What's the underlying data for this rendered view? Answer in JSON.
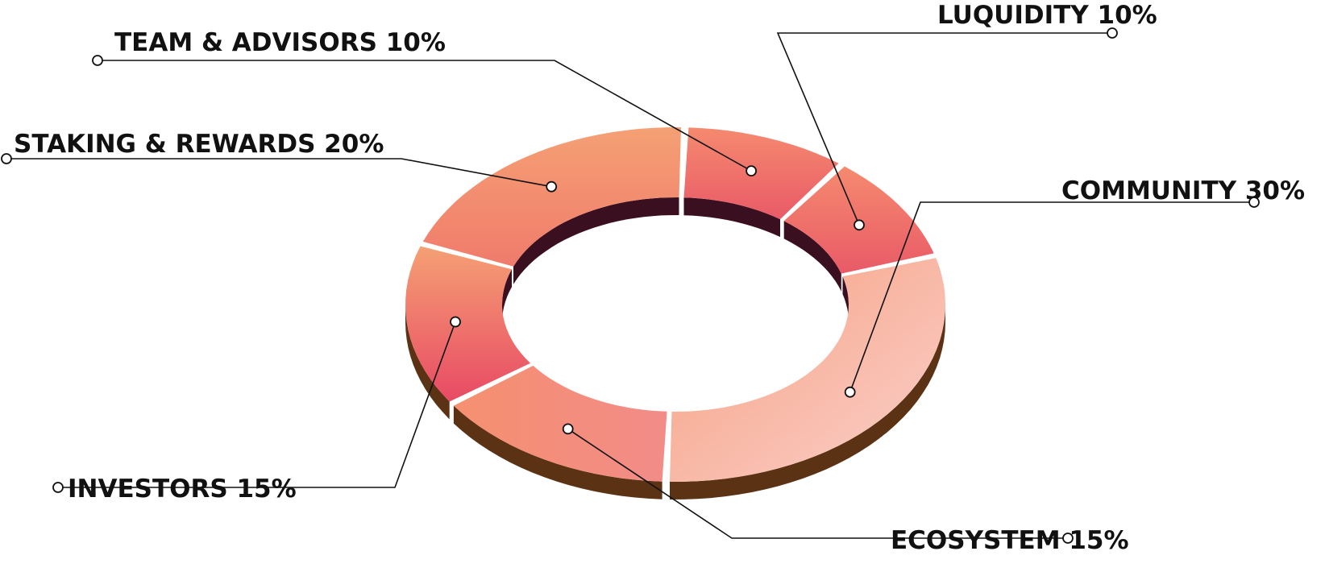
{
  "chart_data": {
    "type": "pie",
    "variant": "3d-donut",
    "title": "",
    "slices": [
      {
        "label": "LUQUIDITY 10%",
        "name": "LUQUIDITY",
        "value": 10
      },
      {
        "label": "COMMUNITY 30%",
        "name": "COMMUNITY",
        "value": 30
      },
      {
        "label": "ECOSYSTEM 15%",
        "name": "ECOSYSTEM",
        "value": 15
      },
      {
        "label": "INVESTORS 15%",
        "name": "INVESTORS",
        "value": 15
      },
      {
        "label": "STAKING & REWARDS 20%",
        "name": "STAKING & REWARDS",
        "value": 20
      },
      {
        "label": "TEAM & ADVISORS 10%",
        "name": "TEAM & ADVISORS",
        "value": 10
      }
    ],
    "colors": {
      "slice_light": "#f9c3bd",
      "slice_mid": "#f4876e",
      "slice_deep": "#e84a64",
      "slice_orange": "#f5a074",
      "side_brown": "#5c3214",
      "side_dark": "#3a1020",
      "leader_line": "#111111"
    }
  }
}
